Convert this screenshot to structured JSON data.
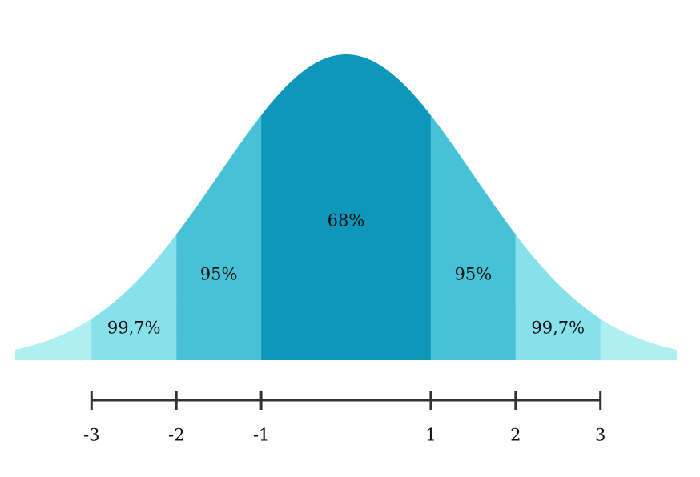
{
  "chart_data": {
    "type": "normal",
    "xlim": [
      -3.9,
      3.9
    ],
    "xticks": [
      -3,
      -2,
      -1,
      1,
      2,
      3
    ],
    "tail_color": "#aef0f2",
    "regions": [
      {
        "label": "99,7%",
        "from": -3,
        "to": -2,
        "color": "#86e1ea"
      },
      {
        "label": "95%",
        "from": -2,
        "to": -1,
        "color": "#47c1d6"
      },
      {
        "label": "68%",
        "from": -1,
        "to": 1,
        "color": "#0e96bb"
      },
      {
        "label": "95%",
        "from": 1,
        "to": 2,
        "color": "#47c1d6"
      },
      {
        "label": "99,7%",
        "from": 2,
        "to": 3,
        "color": "#86e1ea"
      }
    ]
  }
}
